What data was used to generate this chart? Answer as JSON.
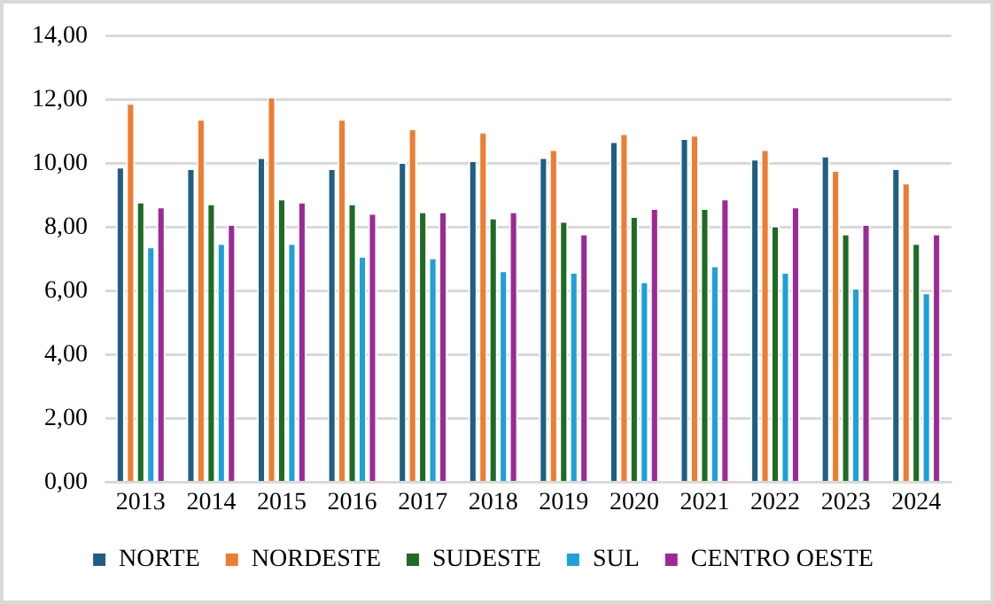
{
  "chart_data": {
    "type": "bar",
    "categories": [
      "2013",
      "2014",
      "2015",
      "2016",
      "2017",
      "2018",
      "2019",
      "2020",
      "2021",
      "2022",
      "2023",
      "2024"
    ],
    "series": [
      {
        "name": "NORTE",
        "color": "#1f5f82",
        "values": [
          9.9,
          9.85,
          10.2,
          9.85,
          10.05,
          10.1,
          10.2,
          10.7,
          10.8,
          10.15,
          10.25,
          9.85
        ]
      },
      {
        "name": "NORDESTE",
        "color": "#ed7d31",
        "values": [
          11.9,
          11.4,
          12.1,
          11.4,
          11.1,
          11.0,
          10.45,
          10.95,
          10.9,
          10.45,
          9.8,
          9.4
        ]
      },
      {
        "name": "SUDESTE",
        "color": "#1e6b24",
        "values": [
          8.8,
          8.75,
          8.9,
          8.75,
          8.5,
          8.3,
          8.2,
          8.35,
          8.6,
          8.05,
          7.8,
          7.5
        ]
      },
      {
        "name": "SUL",
        "color": "#1ea0d8",
        "values": [
          7.4,
          7.5,
          7.5,
          7.1,
          7.05,
          6.65,
          6.6,
          6.3,
          6.8,
          6.6,
          6.1,
          5.95
        ]
      },
      {
        "name": "CENTRO OESTE",
        "color": "#9c2a96",
        "values": [
          8.65,
          8.1,
          8.8,
          8.45,
          8.5,
          8.5,
          7.8,
          8.6,
          8.9,
          8.65,
          8.1,
          7.8
        ]
      }
    ],
    "ylim": [
      0,
      14
    ],
    "yticks": [
      {
        "value": 0,
        "label": "0,00"
      },
      {
        "value": 2,
        "label": "2,00"
      },
      {
        "value": 4,
        "label": "4,00"
      },
      {
        "value": 6,
        "label": "6,00"
      },
      {
        "value": 8,
        "label": "8,00"
      },
      {
        "value": 10,
        "label": "10,00"
      },
      {
        "value": 12,
        "label": "12,00"
      },
      {
        "value": 14,
        "label": "14,00"
      }
    ],
    "grid": "y",
    "legend": "bottom"
  }
}
